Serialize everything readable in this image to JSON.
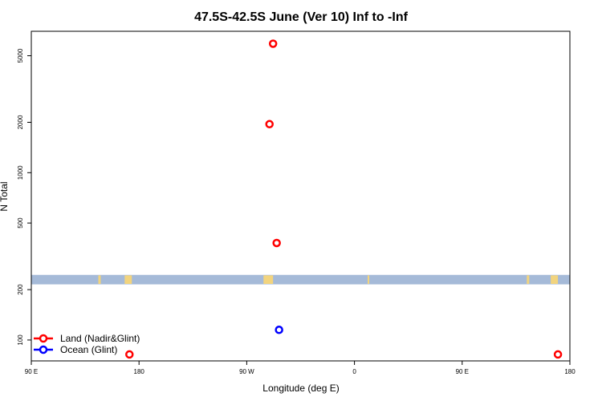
{
  "chart_data": {
    "type": "scatter",
    "title": "47.5S-42.5S June (Ver 10)   Inf to -Inf",
    "xlabel": "Longitude (deg E)",
    "ylabel": "N Total",
    "x_scale": "linear",
    "y_scale": "log",
    "xlim": [
      90,
      540
    ],
    "ylim": [
      75,
      7000
    ],
    "x_ticks": [
      {
        "value": 90,
        "label": "90 E"
      },
      {
        "value": 180,
        "label": "180"
      },
      {
        "value": 270,
        "label": "90 W"
      },
      {
        "value": 360,
        "label": "0"
      },
      {
        "value": 450,
        "label": "90 E"
      },
      {
        "value": 540,
        "label": "180"
      }
    ],
    "y_ticks": [
      100,
      200,
      500,
      1000,
      2000,
      5000
    ],
    "grid": false,
    "legend_position": "bottom-left",
    "series": [
      {
        "name": "Land (Nadir&Glint)",
        "color": "#ff0000",
        "points": [
          {
            "x": 292,
            "y": 5900
          },
          {
            "x": 289,
            "y": 1950
          },
          {
            "x": 295,
            "y": 380
          },
          {
            "x": 172,
            "y": 82
          },
          {
            "x": 530,
            "y": 82
          }
        ]
      },
      {
        "name": "Ocean (Glint)",
        "color": "#0000ff",
        "points": [
          {
            "x": 297,
            "y": 115
          }
        ]
      }
    ],
    "map_strip": {
      "y_range": [
        215,
        245
      ],
      "ocean_color": "#a5bad8",
      "land_color": "#f2d47e",
      "land_segments": [
        [
          146,
          148
        ],
        [
          168,
          174
        ],
        [
          284,
          292
        ],
        [
          371,
          372
        ],
        [
          504,
          506
        ],
        [
          524,
          530
        ]
      ]
    }
  }
}
